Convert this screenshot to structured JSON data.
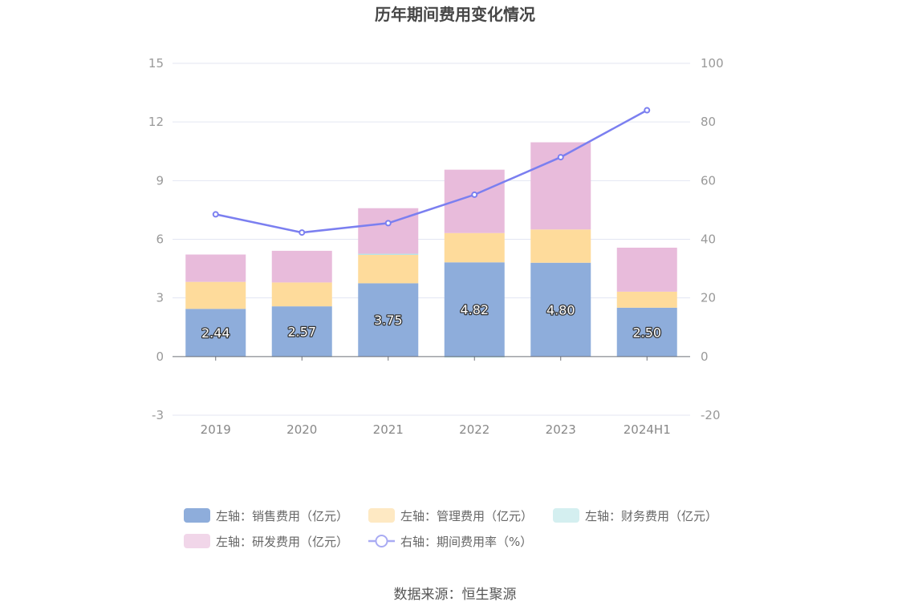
{
  "title": "历年期间费用变化情况",
  "source": "数据来源：恒生聚源",
  "colors": {
    "sales": "#8eaddb",
    "admin": "#fedb9b",
    "finance": "#b8e4e6",
    "rnd": "#e8bbdb",
    "rate": "#7b7ff0"
  },
  "legend": [
    {
      "key": "sales",
      "label": "左轴：销售费用（亿元）"
    },
    {
      "key": "admin",
      "label": "左轴：管理费用（亿元）"
    },
    {
      "key": "finance",
      "label": "左轴：财务费用（亿元）"
    },
    {
      "key": "rnd",
      "label": "左轴：研发费用（亿元）"
    },
    {
      "key": "rate",
      "label": "右轴：期间费用率（%）"
    }
  ],
  "chart_data": {
    "type": "bar",
    "stacked": true,
    "categories": [
      "2019",
      "2020",
      "2021",
      "2022",
      "2023",
      "2024H1"
    ],
    "left_axis": {
      "min": -3,
      "max": 15,
      "ticks": [
        -3,
        0,
        3,
        6,
        9,
        12,
        15
      ]
    },
    "right_axis": {
      "min": -20,
      "max": 100,
      "ticks": [
        -20,
        0,
        20,
        40,
        60,
        80,
        100
      ]
    },
    "series": [
      {
        "key": "sales",
        "name": "左轴：销售费用（亿元）",
        "axis": "left",
        "values": [
          2.44,
          2.57,
          3.75,
          4.82,
          4.8,
          2.5
        ],
        "labels": [
          "2.44",
          "2.57",
          "3.75",
          "4.82",
          "4.80",
          "2.50"
        ]
      },
      {
        "key": "admin",
        "name": "左轴：管理费用（亿元）",
        "axis": "left",
        "values": [
          1.38,
          1.22,
          1.45,
          1.5,
          1.7,
          0.82
        ]
      },
      {
        "key": "finance",
        "name": "左轴：财务费用（亿元）",
        "axis": "left",
        "values": [
          -0.02,
          -0.03,
          0.06,
          -0.05,
          0.0,
          -0.02
        ]
      },
      {
        "key": "rnd",
        "name": "左轴：研发费用（亿元）",
        "axis": "left",
        "values": [
          1.4,
          1.62,
          2.33,
          3.24,
          4.46,
          2.25
        ]
      },
      {
        "key": "rate",
        "name": "右轴：期间费用率（%）",
        "axis": "right",
        "type": "line",
        "values": [
          48.5,
          42.3,
          45.5,
          55.2,
          68.0,
          84.0
        ]
      }
    ]
  }
}
